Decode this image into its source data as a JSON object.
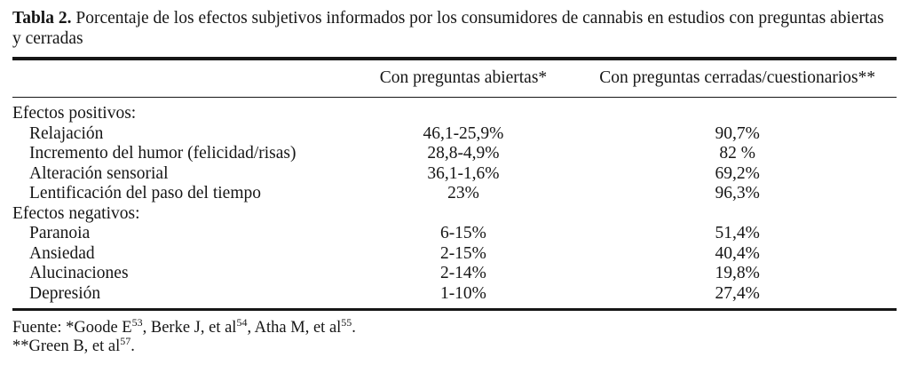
{
  "title": {
    "label": "Tabla 2.",
    "text": "Porcentaje de los efectos subjetivos informados por los consumidores de cannabis en estudios con preguntas abiertas y cerradas"
  },
  "table": {
    "columns": {
      "open": "Con preguntas abiertas*",
      "closed": "Con preguntas cerradas/cuestionarios**"
    },
    "sections": [
      {
        "header": "Efectos positivos:",
        "rows": [
          {
            "label": "Relajación",
            "open": "46,1-25,9%",
            "closed": "90,7%"
          },
          {
            "label": "Incremento del humor (felicidad/risas)",
            "open": "28,8-4,9%",
            "closed": "82 %"
          },
          {
            "label": "Alteración sensorial",
            "open": "36,1-1,6%",
            "closed": "69,2%"
          },
          {
            "label": "Lentificación del paso del tiempo",
            "open": "23%",
            "closed": "96,3%"
          }
        ]
      },
      {
        "header": "Efectos negativos:",
        "rows": [
          {
            "label": "Paranoia",
            "open": "6-15%",
            "closed": "51,4%"
          },
          {
            "label": "Ansiedad",
            "open": "2-15%",
            "closed": "40,4%"
          },
          {
            "label": "Alucinaciones",
            "open": "2-14%",
            "closed": "19,8%"
          },
          {
            "label": "Depresión",
            "open": "1-10%",
            "closed": "27,4%"
          }
        ]
      }
    ]
  },
  "footnotes": {
    "line1": {
      "t0": "Fuente: *Goode E",
      "s0": "53",
      "t1": ", Berke J, et al",
      "s1": "54",
      "t2": ", Atha M, et al",
      "s2": "55",
      "t3": "."
    },
    "line2": {
      "t0": "**Green B, et al",
      "s0": "57",
      "t1": "."
    }
  }
}
